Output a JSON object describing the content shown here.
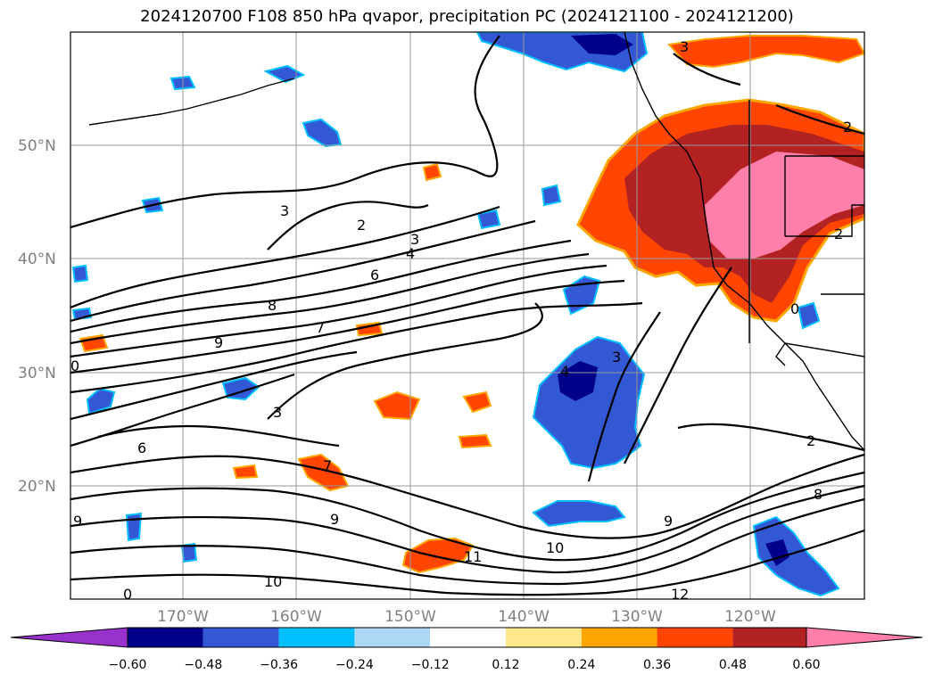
{
  "title": "2024120700 F108 850 hPa qvapor, precipitation PC (2024121100 - 2024121200)",
  "axes": {
    "lat_labels": [
      "50°N",
      "40°N",
      "30°N",
      "20°N"
    ],
    "lon_labels": [
      "170°W",
      "160°W",
      "150°W",
      "140°W",
      "130°W",
      "120°W"
    ]
  },
  "colorbar": {
    "colors": [
      "#9932cc",
      "#00008b",
      "#3358d4",
      "#00bfff",
      "#add8f5",
      "#ffffff",
      "#fde98c",
      "#ffa500",
      "#ff4500",
      "#b22222",
      "#ff7faa"
    ],
    "tick_labels": [
      "−0.60",
      "−0.48",
      "−0.36",
      "−0.24",
      "−0.12",
      "0.12",
      "0.24",
      "0.36",
      "0.48",
      "0.60"
    ]
  },
  "contour_labels": [
    "3",
    "2",
    "3",
    "4",
    "6",
    "8",
    "7",
    "9",
    "0",
    "3",
    "6",
    "7",
    "9",
    "11",
    "10",
    "10",
    "12",
    "3",
    "4",
    "3",
    "2",
    "8",
    "9",
    "2",
    "2",
    "0",
    "0",
    "9"
  ]
}
